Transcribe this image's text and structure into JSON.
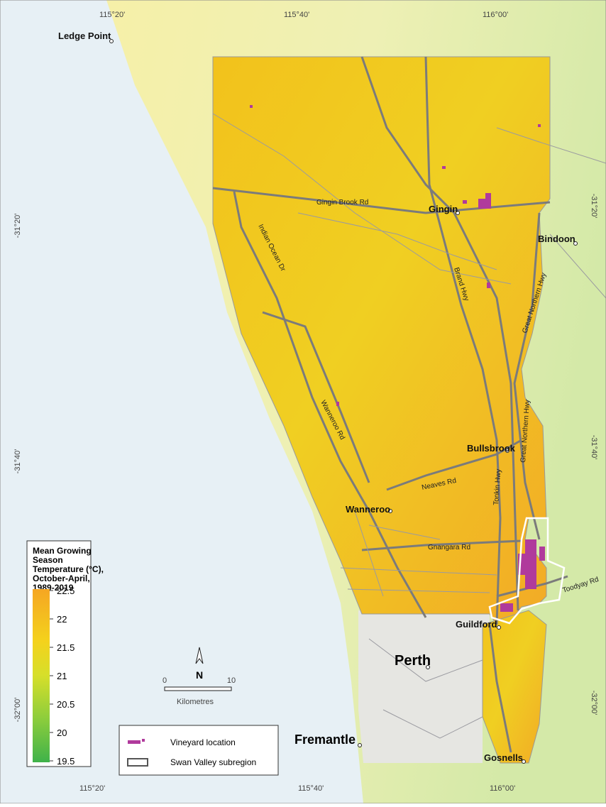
{
  "map": {
    "grid_labels": {
      "top": [
        "115°20'",
        "115°40'",
        "116°00'"
      ],
      "bottom": [
        "115°20'",
        "115°40'",
        "116°00'"
      ],
      "left": [
        "-31°20'",
        "-31°40'",
        "-32°00'"
      ],
      "right": [
        "-31°20'",
        "-31°40'",
        "-32°00'"
      ]
    },
    "towns": [
      "Ledge Point",
      "Gingin",
      "Bindoon",
      "Bullsbrook",
      "Wanneroo",
      "Guildford",
      "Perth",
      "Fremantle",
      "Gosnells"
    ],
    "roads": [
      "Gingin Brook Rd",
      "Indian Ocean Dr",
      "Brand Hwy",
      "Great Northern Hwy",
      "Great Northern Hwy",
      "Wanneroo Rd",
      "Neaves Rd",
      "Tonkin Hwy",
      "Gnangara Rd",
      "Toodyay Rd"
    ],
    "north": "N",
    "scale_bar": {
      "ticks": [
        "0",
        "10"
      ],
      "unit": "Kilometres"
    },
    "color_legend": {
      "title_lines": [
        "Mean Growing",
        "Season",
        "Temperature (°C),",
        "October-April,",
        "1989-2019"
      ],
      "ticks": [
        22.5,
        22,
        21.5,
        21,
        20.5,
        20,
        19.5
      ]
    },
    "symbol_legend": [
      "Vineyard location",
      "Swan Valley subregion"
    ]
  }
}
